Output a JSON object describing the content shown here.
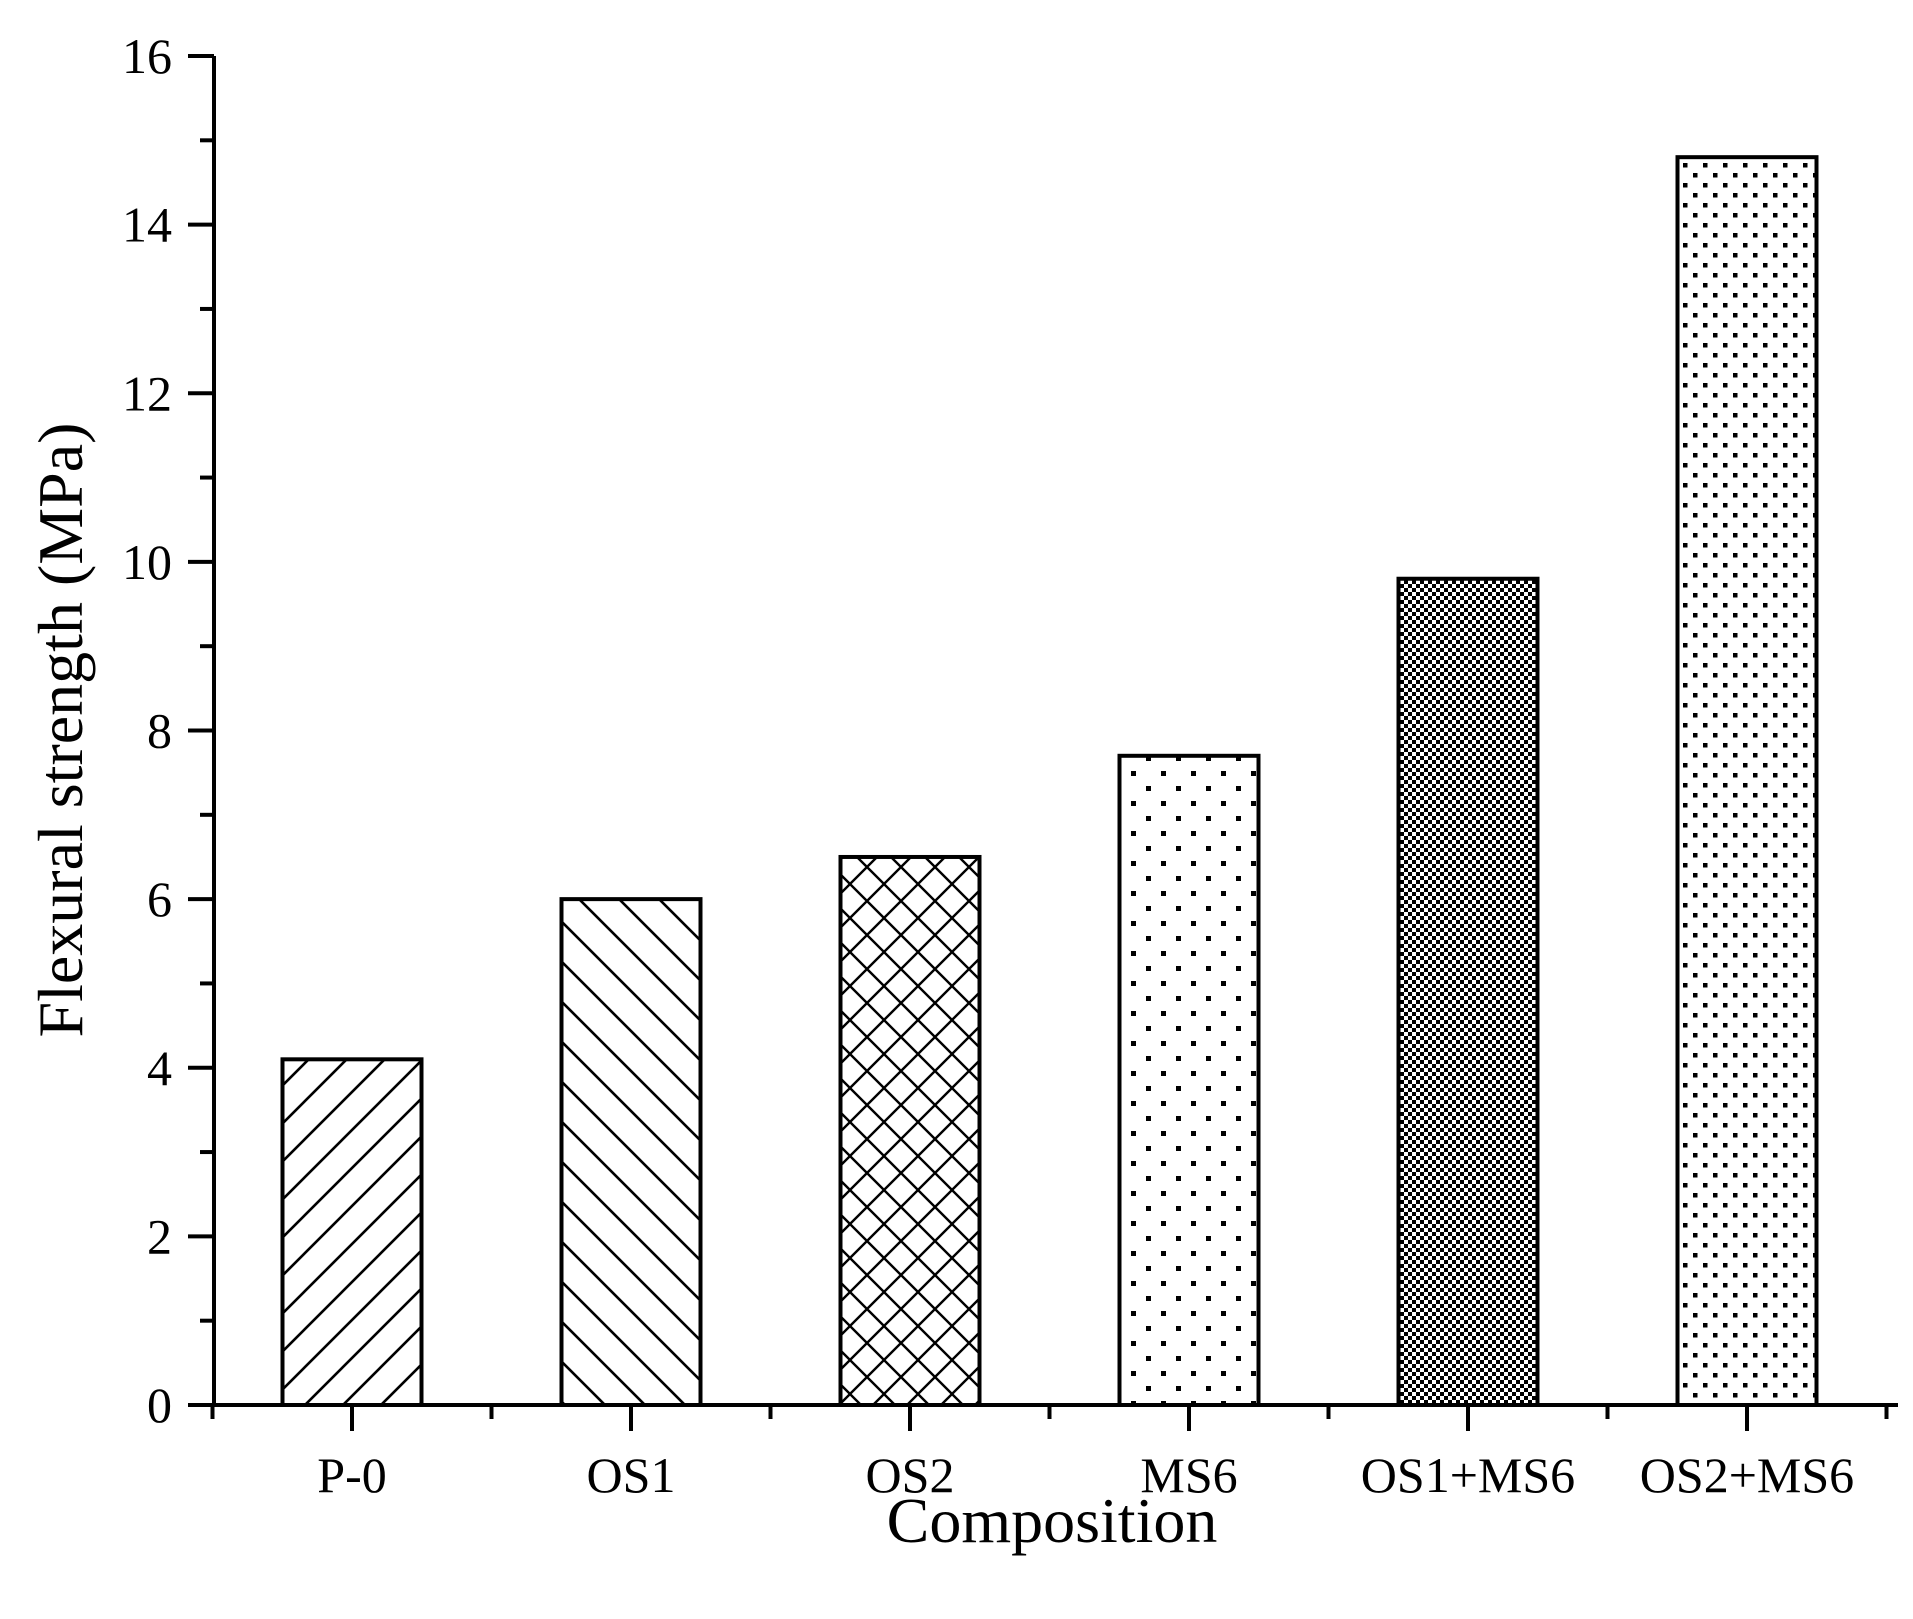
{
  "chart_data": {
    "type": "bar",
    "title": "",
    "xlabel": "Composition",
    "ylabel": "Flexural strength (MPa)",
    "categories": [
      "P-0",
      "OS1",
      "OS2",
      "MS6",
      "OS1+MS6",
      "OS2+MS6"
    ],
    "values": [
      4.1,
      6.0,
      6.5,
      7.7,
      9.8,
      14.8
    ],
    "patterns": [
      "diagonal-forward",
      "diagonal-backward",
      "crosshatch",
      "sparse-dots",
      "dense-checker",
      "medium-dots"
    ],
    "ylim": [
      0,
      16
    ],
    "yticks": [
      0,
      2,
      4,
      6,
      8,
      10,
      12,
      14,
      16
    ],
    "grid": false,
    "legend": "none"
  }
}
